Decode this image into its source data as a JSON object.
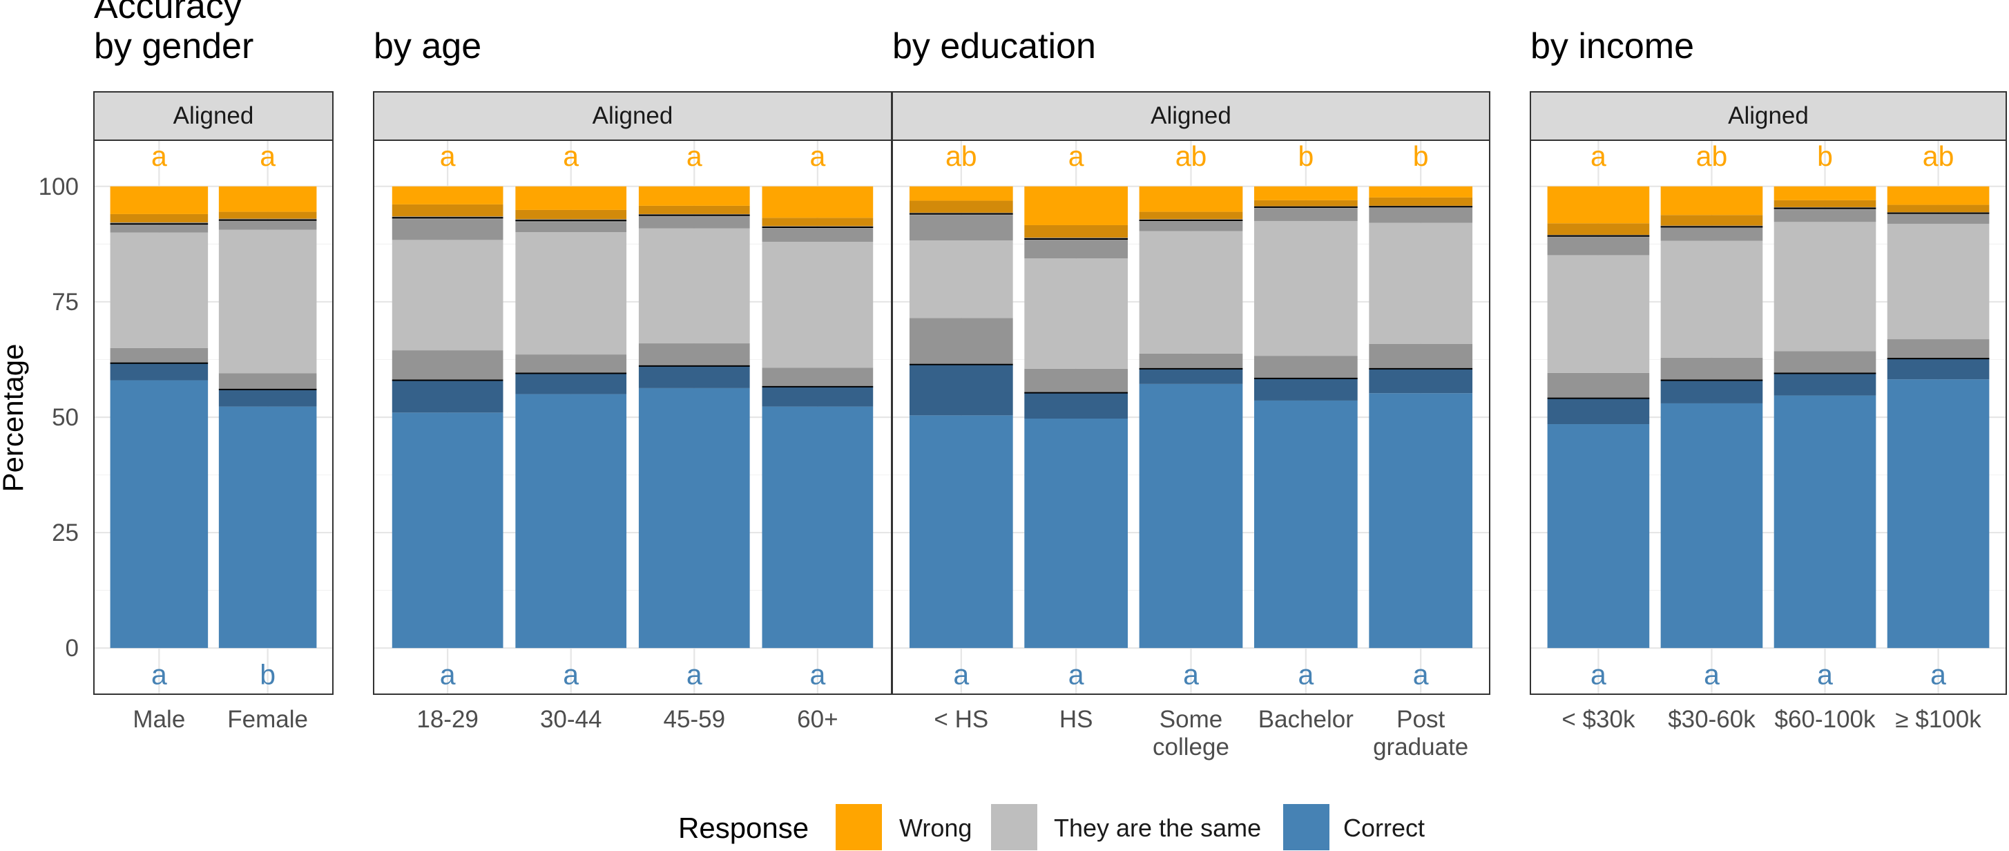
{
  "chart_data": {
    "type": "bar",
    "stacked": true,
    "ylabel": "Percentage",
    "ylim": [
      -10,
      110
    ],
    "yticks": [
      0,
      25,
      50,
      75,
      100
    ],
    "legend": {
      "title": "Response",
      "position": "bottom",
      "entries": [
        {
          "label": "Wrong",
          "color": "#FFA500"
        },
        {
          "label": "They are the same",
          "color": "#BEBEBE"
        },
        {
          "label": "Correct",
          "color": "#4682B4"
        }
      ]
    },
    "colors": {
      "correct": "#4682B4",
      "correct_dark": "#35618A",
      "same": "#BEBEBE",
      "same_dark": "#949494",
      "wrong": "#FFA500",
      "wrong_dark": "#D28A0A"
    },
    "panels": [
      {
        "title_lines": [
          "Accuracy",
          "by gender"
        ],
        "strip": "Aligned",
        "bars": [
          {
            "label_lines": [
              "Male"
            ],
            "top_letter": "a",
            "bottom_letter": "a",
            "segments": [
              58,
              3.7,
              3.3,
              25,
              1.5,
              0.7,
              1.8,
              6
            ]
          },
          {
            "label_lines": [
              "Female"
            ],
            "top_letter": "a",
            "bottom_letter": "b",
            "segments": [
              52.3,
              3.7,
              3.5,
              31.1,
              1.8,
              0.6,
              1.5,
              5.5
            ]
          }
        ]
      },
      {
        "title_lines": [
          "by age"
        ],
        "strip": "Aligned",
        "bars": [
          {
            "label_lines": [
              "18-29"
            ],
            "top_letter": "a",
            "bottom_letter": "a",
            "segments": [
              51,
              7,
              6.5,
              23.9,
              4.5,
              0.6,
              2.6,
              3.9
            ]
          },
          {
            "label_lines": [
              "30-44"
            ],
            "top_letter": "a",
            "bottom_letter": "a",
            "segments": [
              55,
              4.5,
              4.1,
              26.5,
              2.2,
              0.6,
              2,
              5.1
            ]
          },
          {
            "label_lines": [
              "45-59"
            ],
            "top_letter": "a",
            "bottom_letter": "a",
            "segments": [
              56.3,
              4.8,
              4.9,
              24.9,
              2.6,
              0.5,
              1.8,
              4.2
            ]
          },
          {
            "label_lines": [
              "60+"
            ],
            "top_letter": "a",
            "bottom_letter": "a",
            "segments": [
              52.3,
              4.3,
              4.1,
              27.3,
              2.9,
              0.5,
              1.8,
              6.8
            ]
          }
        ]
      },
      {
        "title_lines": [
          "by education"
        ],
        "strip": "Aligned",
        "bars": [
          {
            "label_lines": [
              "< HS"
            ],
            "top_letter": "ab",
            "bottom_letter": "a",
            "segments": [
              50.4,
              11,
              10.1,
              16.8,
              5.5,
              0.5,
              2.6,
              3.1
            ]
          },
          {
            "label_lines": [
              "HS"
            ],
            "top_letter": "a",
            "bottom_letter": "a",
            "segments": [
              49.7,
              5.6,
              5.2,
              23.9,
              3.9,
              0.6,
              2.7,
              8.4
            ]
          },
          {
            "label_lines": [
              "Some",
              "college"
            ],
            "top_letter": "ab",
            "bottom_letter": "a",
            "segments": [
              57.2,
              3.3,
              3.3,
              26.5,
              2.1,
              0.5,
              1.6,
              5.5
            ]
          },
          {
            "label_lines": [
              "Bachelor"
            ],
            "top_letter": "b",
            "bottom_letter": "a",
            "segments": [
              53.6,
              4.8,
              4.9,
              29.2,
              2.8,
              0.4,
              1.3,
              3
            ]
          },
          {
            "label_lines": [
              "Post",
              "graduate"
            ],
            "top_letter": "b",
            "bottom_letter": "a",
            "segments": [
              55.2,
              5.3,
              5.4,
              26.2,
              3.3,
              0.4,
              1.8,
              2.4
            ]
          }
        ]
      },
      {
        "title_lines": [
          "by income"
        ],
        "strip": "Aligned",
        "bars": [
          {
            "label_lines": [
              "< $30k"
            ],
            "top_letter": "a",
            "bottom_letter": "a",
            "segments": [
              48.5,
              5.6,
              5.5,
              25.5,
              3.9,
              0.5,
              2.5,
              8
            ]
          },
          {
            "label_lines": [
              "$30-60k"
            ],
            "top_letter": "ab",
            "bottom_letter": "a",
            "segments": [
              53,
              5,
              4.9,
              25.3,
              2.8,
              0.5,
              2.3,
              6.2
            ]
          },
          {
            "label_lines": [
              "$60-100k"
            ],
            "top_letter": "b",
            "bottom_letter": "a",
            "segments": [
              54.7,
              4.8,
              4.8,
              28,
              2.7,
              0.5,
              1.5,
              3
            ]
          },
          {
            "label_lines": [
              "≥ $100k"
            ],
            "top_letter": "ab",
            "bottom_letter": "a",
            "segments": [
              58.2,
              4.5,
              4.2,
              25,
              2.1,
              0.4,
              1.6,
              4
            ]
          }
        ]
      }
    ]
  }
}
